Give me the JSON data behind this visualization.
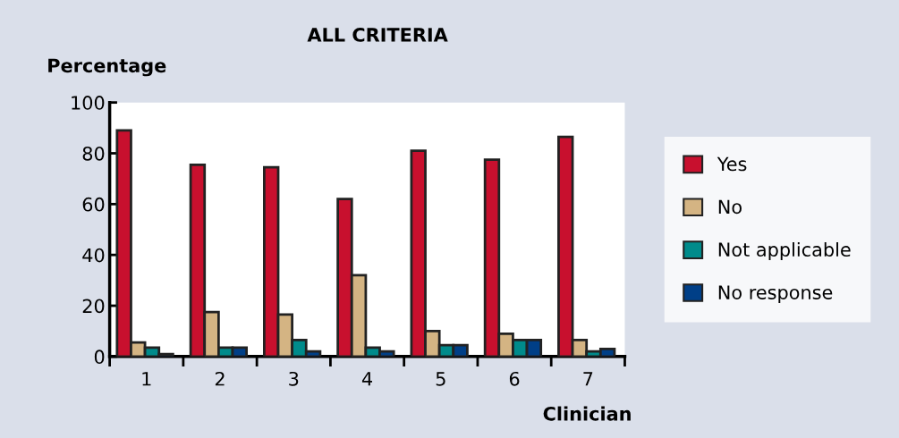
{
  "chart_data": {
    "type": "bar",
    "title": "ALL CRITERIA",
    "ylabel": "Percentage",
    "xlabel": "Clinician",
    "categories": [
      "1",
      "2",
      "3",
      "4",
      "5",
      "6",
      "7"
    ],
    "series": [
      {
        "name": "Yes",
        "color": "#c8102e",
        "values": [
          89,
          75.5,
          74.5,
          62,
          81,
          77.5,
          86.5
        ]
      },
      {
        "name": "No",
        "color": "#d4b483",
        "values": [
          5.5,
          17.5,
          16.5,
          32,
          10,
          9,
          6.5
        ]
      },
      {
        "name": "Not applicable",
        "color": "#008b8b",
        "values": [
          3.5,
          3.5,
          6.5,
          3.5,
          4.5,
          6.5,
          2
        ]
      },
      {
        "name": "No response",
        "color": "#003f87",
        "values": [
          1,
          3.5,
          2,
          2,
          4.5,
          6.5,
          3
        ]
      }
    ],
    "ylim": [
      0,
      100
    ],
    "yticks": [
      0,
      20,
      40,
      60,
      80,
      100
    ],
    "grid": false,
    "legend": "right"
  }
}
